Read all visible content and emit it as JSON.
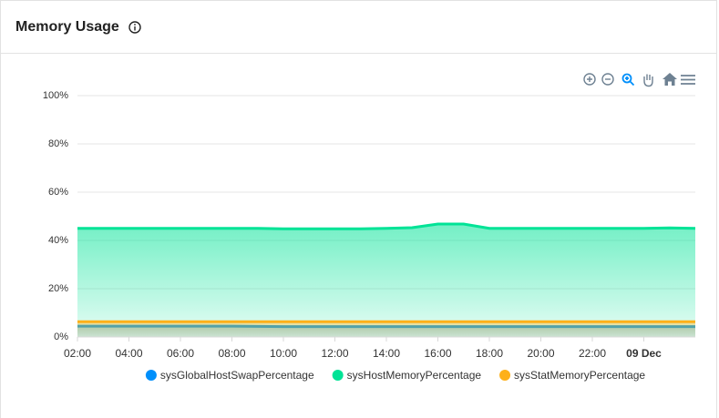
{
  "chart_data": {
    "type": "area",
    "title": "Memory Usage",
    "x": [
      2,
      3,
      4,
      5,
      6,
      7,
      8,
      9,
      10,
      11,
      12,
      13,
      14,
      15,
      16,
      17,
      18,
      19,
      20,
      21,
      22,
      23,
      24,
      25,
      26
    ],
    "xlim": [
      2,
      26
    ],
    "xticks": [
      {
        "value": 2,
        "label": "02:00"
      },
      {
        "value": 4,
        "label": "04:00"
      },
      {
        "value": 6,
        "label": "06:00"
      },
      {
        "value": 8,
        "label": "08:00"
      },
      {
        "value": 10,
        "label": "10:00"
      },
      {
        "value": 12,
        "label": "12:00"
      },
      {
        "value": 14,
        "label": "14:00"
      },
      {
        "value": 16,
        "label": "16:00"
      },
      {
        "value": 18,
        "label": "18:00"
      },
      {
        "value": 20,
        "label": "20:00"
      },
      {
        "value": 22,
        "label": "22:00"
      },
      {
        "value": 24,
        "label": "09 Dec"
      }
    ],
    "ylim": [
      0,
      100
    ],
    "yticks": [
      {
        "value": 0,
        "label": "0%"
      },
      {
        "value": 20,
        "label": "20%"
      },
      {
        "value": 40,
        "label": "40%"
      },
      {
        "value": 60,
        "label": "60%"
      },
      {
        "value": 80,
        "label": "80%"
      },
      {
        "value": 100,
        "label": "100%"
      }
    ],
    "grid": true,
    "series": [
      {
        "name": "sysGlobalHostSwapPercentage",
        "color": "#008ffb",
        "values": [
          4.5,
          4.5,
          4.5,
          4.5,
          4.5,
          4.5,
          4.5,
          4.4,
          4.3,
          4.3,
          4.3,
          4.3,
          4.3,
          4.3,
          4.3,
          4.3,
          4.3,
          4.3,
          4.3,
          4.3,
          4.3,
          4.3,
          4.3,
          4.3,
          4.3
        ]
      },
      {
        "name": "sysHostMemoryPercentage",
        "color": "#00e396",
        "values": [
          45,
          45,
          45,
          45,
          45,
          45,
          45,
          45,
          44.8,
          44.8,
          44.8,
          44.8,
          45,
          45.3,
          46.8,
          46.8,
          45,
          45,
          45,
          45,
          45,
          45,
          45,
          45.2,
          45
        ]
      },
      {
        "name": "sysStatMemoryPercentage",
        "color": "#feb019",
        "values": [
          6.3,
          6.3,
          6.3,
          6.3,
          6.3,
          6.3,
          6.3,
          6.3,
          6.3,
          6.3,
          6.3,
          6.3,
          6.3,
          6.3,
          6.3,
          6.3,
          6.3,
          6.3,
          6.3,
          6.3,
          6.3,
          6.3,
          6.3,
          6.3,
          6.3
        ]
      }
    ]
  }
}
